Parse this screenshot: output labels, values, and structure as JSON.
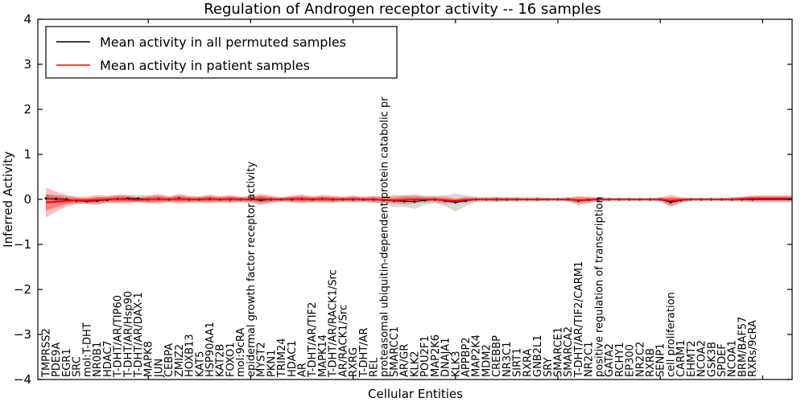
{
  "chart_data": {
    "type": "line",
    "title": "Regulation of Androgen receptor activity -- 16 samples",
    "xlabel": "Cellular Entities",
    "ylabel": "Inferred Activity",
    "ylim": [
      -4,
      4
    ],
    "yticks": [
      4,
      3,
      2,
      1,
      0,
      -1,
      -2,
      -3,
      -4
    ],
    "x_tick_step": 10,
    "grid": false,
    "legend_position": "upper left",
    "categories": [
      "TMPRSS2",
      "PDE9A",
      "EGR1",
      "SRC",
      "mol:T-DHT",
      "NR0B1",
      "HDAC7",
      "T-DHT/AR/TIP60",
      "T-DHT/AR/Hsp90",
      "T-DHT/AR/DAX-1",
      "MAPK8",
      "JUN",
      "CEBPA",
      "ZMIZ2",
      "HOXB13",
      "KAT5",
      "HSP90AA1",
      "KAT2B",
      "FOXO1",
      "mol:9cRA",
      "epidermal growth factor receptor activity",
      "MYST2",
      "PKN1",
      "TRIM24",
      "HDAC1",
      "AR",
      "T-DHT/AR/TIF2",
      "MAPK14",
      "T-DHT/AR/RACK1/Src",
      "AR/RACK1/Src",
      "RXRG",
      "T-DHT/AR",
      "REL",
      "proteasomal ubiquitin-dependent protein catabolic pr",
      "SMARCC1",
      "AR/GR",
      "KLK2",
      "POU2F1",
      "MAP2K6",
      "DNAJA1",
      "KLK3",
      "APPBP2",
      "MAP2K4",
      "MDM2",
      "CREBBP",
      "NR3C1",
      "SIRT1",
      "RXRA",
      "GNB2L1",
      "SRY",
      "SMARCE1",
      "SMARCA2",
      "T-DHT/AR/TIF2/CARM1",
      "NR2C1",
      "positive regulation of transcription",
      "GATA2",
      "RCHY1",
      "EP300",
      "NR2C2",
      "RXRB",
      "SENP1",
      "cell proliferation",
      "CARM1",
      "EHMT2",
      "NCOA2",
      "GSK3B",
      "SPDEF",
      "NCOA1",
      "BRM/BAF57",
      "RXRs/9cRA"
    ],
    "series": [
      {
        "name": "Mean activity in all permuted samples",
        "color": "#000000",
        "marker": "dot",
        "values": [
          0.02,
          0.01,
          0,
          -0.03,
          -0.04,
          -0.03,
          -0.01,
          0.01,
          0.02,
          0.02,
          0,
          0.01,
          0,
          0.02,
          0,
          0,
          0.01,
          0,
          0,
          0,
          0,
          -0.02,
          0,
          0,
          0,
          0.01,
          0,
          0.01,
          0,
          0,
          0,
          0,
          0,
          -0.02,
          -0.03,
          -0.04,
          -0.05,
          -0.02,
          0,
          -0.03,
          -0.07,
          -0.03,
          0,
          0,
          0,
          0,
          0,
          0,
          0,
          0,
          0,
          0,
          -0.03,
          -0.01,
          0,
          0,
          0,
          0,
          0,
          0,
          0,
          -0.06,
          -0.02,
          0,
          0,
          0,
          0,
          0,
          0,
          0
        ],
        "band": {
          "halfwidths": [
            0.1,
            0.09,
            0.08,
            0.07,
            0.07,
            0.08,
            0.07,
            0.08,
            0.07,
            0.08,
            0.08,
            0.07,
            0.06,
            0.07,
            0.06,
            0.06,
            0.07,
            0.06,
            0.07,
            0.06,
            0.06,
            0.1,
            0.06,
            0.05,
            0.06,
            0.07,
            0.06,
            0.06,
            0.06,
            0.05,
            0.06,
            0.05,
            0.06,
            0.09,
            0.14,
            0.12,
            0.16,
            0.1,
            0.08,
            0.12,
            0.2,
            0.12,
            0.06,
            0.05,
            0.06,
            0.05,
            0.05,
            0.05,
            0.05,
            0.04,
            0.04,
            0.05,
            0.1,
            0.08,
            0.05,
            0.04,
            0.04,
            0.04,
            0.04,
            0.04,
            0.05,
            0.1,
            0.06,
            0.04,
            0.04,
            0.04,
            0.04,
            0.05,
            0.06,
            0.07
          ],
          "color": "#999999",
          "opacity": 0.38
        }
      },
      {
        "name": "Mean activity in patient samples",
        "color": "#ff0000",
        "marker": "none",
        "values": [
          -0.07,
          -0.05,
          -0.03,
          -0.02,
          -0.02,
          -0.01,
          0,
          0.01,
          0,
          -0.01,
          0,
          0.01,
          0,
          0.01,
          0,
          0,
          0.01,
          0,
          0.01,
          0,
          0,
          0.01,
          0,
          0,
          0.01,
          0.01,
          0,
          0.01,
          0,
          0,
          0.01,
          0,
          0,
          -0.01,
          -0.02,
          -0.01,
          0,
          0,
          0,
          -0.02,
          -0.03,
          -0.01,
          0,
          0,
          0,
          0,
          0,
          0,
          0,
          0,
          0,
          0,
          -0.02,
          -0.01,
          0,
          0,
          0,
          0,
          0,
          0,
          0,
          -0.03,
          -0.01,
          0,
          0,
          0,
          0,
          0,
          0.01,
          0.02
        ],
        "band_outer": {
          "halfwidths": [
            0.33,
            0.22,
            0.13,
            0.08,
            0.08,
            0.11,
            0.08,
            0.1,
            0.1,
            0.06,
            0.09,
            0.11,
            0.07,
            0.11,
            0.08,
            0.07,
            0.1,
            0.07,
            0.09,
            0.06,
            0.08,
            0.12,
            0.08,
            0.05,
            0.08,
            0.1,
            0.07,
            0.09,
            0.08,
            0.06,
            0.08,
            0.06,
            0.08,
            0.06,
            0.08,
            0.1,
            0.09,
            0.07,
            0.06,
            0.08,
            0.05,
            0.07,
            0.04,
            0.04,
            0.05,
            0.04,
            0.04,
            0.03,
            0.04,
            0.03,
            0.03,
            0.04,
            0.08,
            0.06,
            0.04,
            0.03,
            0.03,
            0.03,
            0.03,
            0.03,
            0.04,
            0.13,
            0.06,
            0.03,
            0.03,
            0.03,
            0.03,
            0.04,
            0.05,
            0.07
          ],
          "color": "#ff0000",
          "opacity": 0.25
        },
        "band_inner_scale": 0.55,
        "band_inner_opacity": 0.35
      }
    ]
  }
}
